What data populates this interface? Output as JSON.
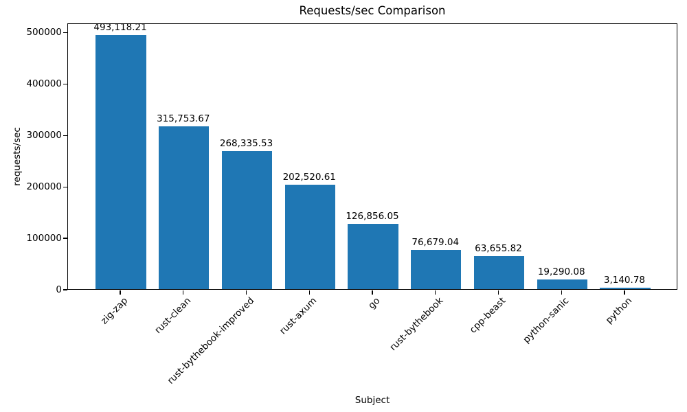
{
  "chart_data": {
    "type": "bar",
    "title": "Requests/sec Comparison",
    "xlabel": "Subject",
    "ylabel": "requests/sec",
    "categories": [
      "zig-zap",
      "rust-clean",
      "rust-bythebook-improved",
      "rust-axum",
      "go",
      "rust-bythebook",
      "cpp-beast",
      "python-sanic",
      "python"
    ],
    "values": [
      493118.21,
      315753.67,
      268335.53,
      202520.61,
      126856.05,
      76679.04,
      63655.82,
      19290.08,
      3140.78
    ],
    "bar_labels": [
      "493,118.21",
      "315,753.67",
      "268,335.53",
      "202,520.61",
      "126,856.05",
      "76,679.04",
      "63,655.82",
      "19,290.08",
      "3,140.78"
    ],
    "yticks": [
      0,
      100000,
      200000,
      300000,
      400000,
      500000
    ],
    "ylim": [
      0,
      517774
    ],
    "bar_color": "#1f77b4",
    "axis_color": "#000000",
    "grid": false,
    "legend_position": "none"
  }
}
